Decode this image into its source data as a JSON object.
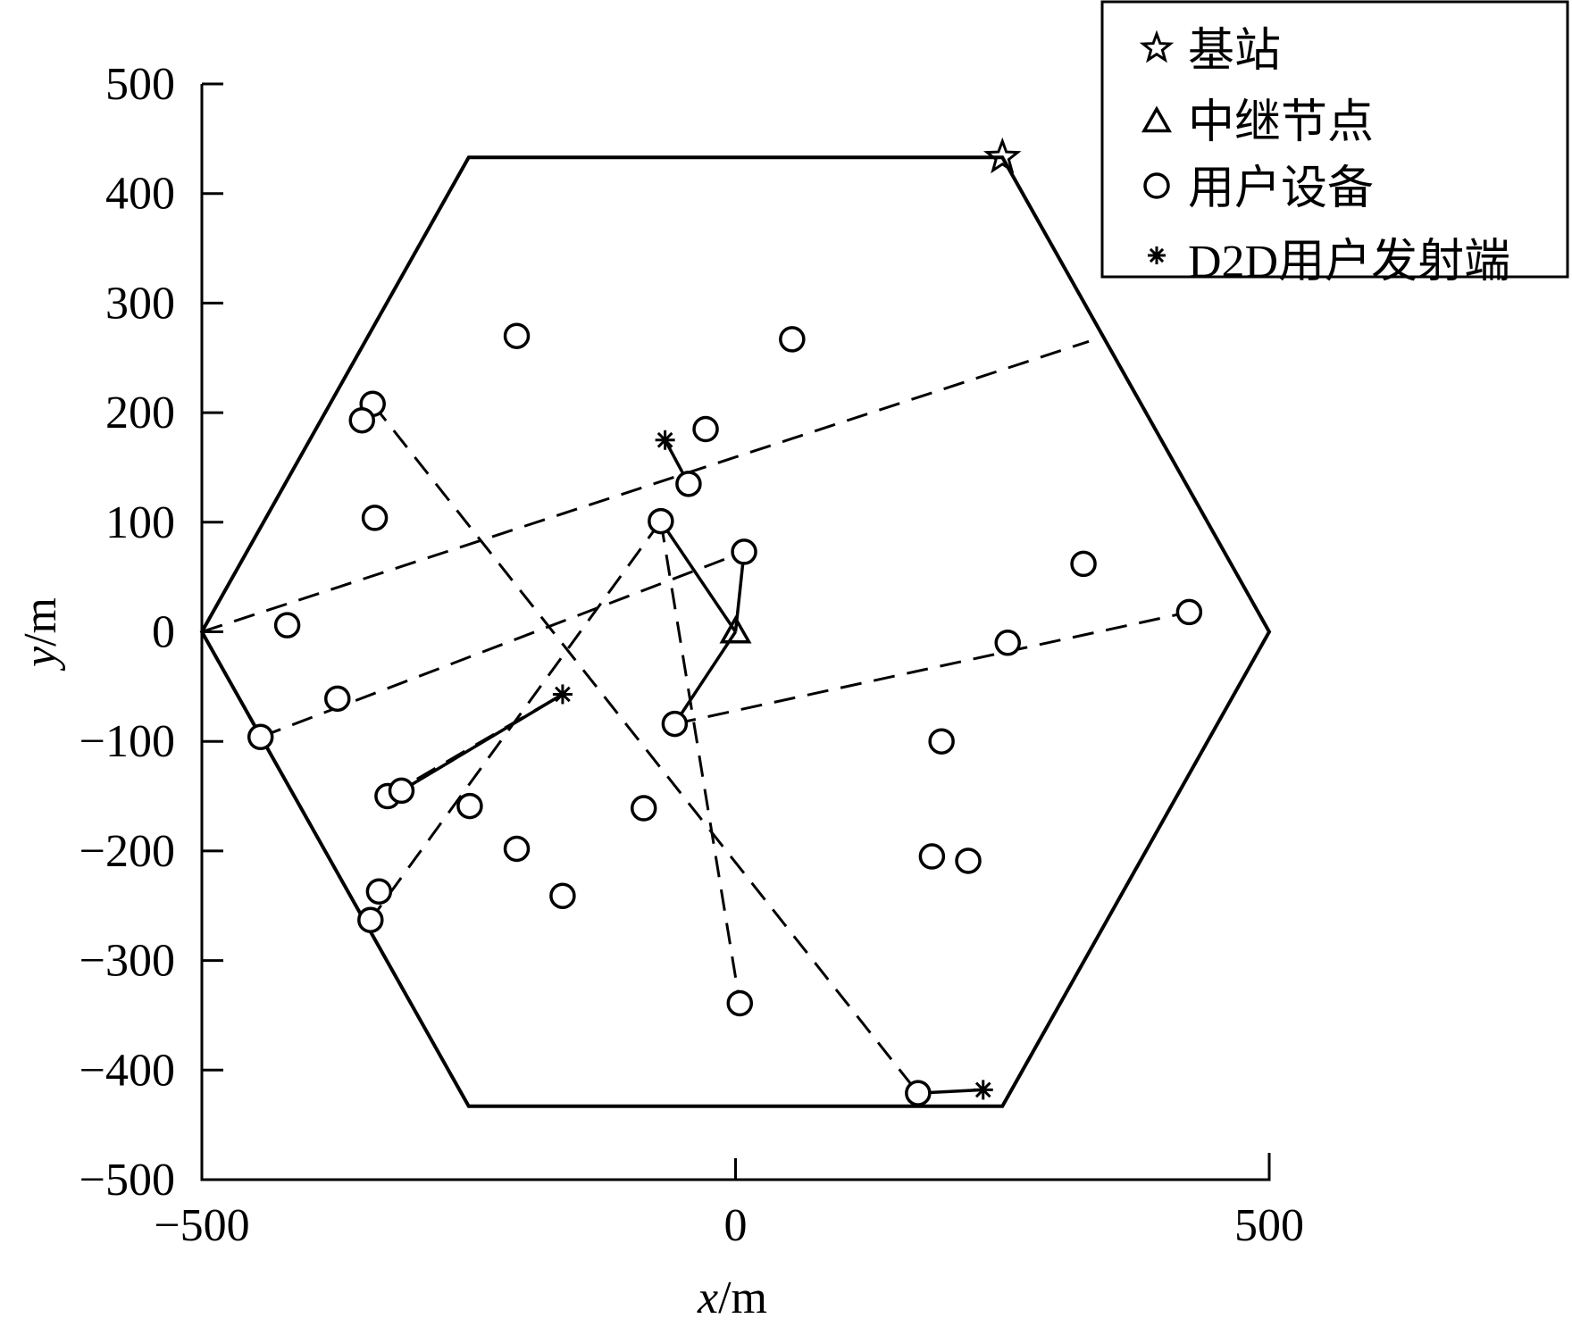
{
  "chart_data": {
    "type": "scatter",
    "title": "",
    "xlabel": {
      "var": "x",
      "unit": "/m"
    },
    "ylabel": {
      "var": "y",
      "unit": "/m"
    },
    "xlim": [
      -500,
      500
    ],
    "ylim": [
      -500,
      500
    ],
    "xticks": [
      -500,
      0,
      500
    ],
    "xtick_labels": [
      "−500",
      "0",
      "500"
    ],
    "yticks": [
      500,
      400,
      300,
      200,
      100,
      0,
      -100,
      -200,
      -300,
      -400,
      -500
    ],
    "ytick_labels": [
      "500",
      "400",
      "300",
      "200",
      "100",
      "0",
      "−100",
      "−200",
      "−300",
      "−400",
      "−500"
    ],
    "grid": false,
    "legend_position": "top-right",
    "legend": [
      {
        "marker": "star",
        "label": "基站"
      },
      {
        "marker": "triangle",
        "label": "中继节点"
      },
      {
        "marker": "circle",
        "label": "用户设备"
      },
      {
        "marker": "asterisk",
        "label": "D2D用户发射端"
      }
    ],
    "cell_boundary": [
      [
        -250,
        433
      ],
      [
        250,
        433
      ],
      [
        500,
        0
      ],
      [
        250,
        -433
      ],
      [
        -250,
        -433
      ],
      [
        -500,
        0
      ]
    ],
    "base_station": [
      [
        250,
        433
      ]
    ],
    "relay_nodes": [
      [
        0,
        0
      ]
    ],
    "user_equipment": [
      [
        -205,
        270
      ],
      [
        53,
        267
      ],
      [
        -340,
        208
      ],
      [
        -350,
        193
      ],
      [
        -28,
        185
      ],
      [
        -338,
        104
      ],
      [
        -44,
        135
      ],
      [
        -70,
        101
      ],
      [
        8,
        73
      ],
      [
        -420,
        6
      ],
      [
        -373,
        -61
      ],
      [
        -445,
        -96
      ],
      [
        -57,
        -84
      ],
      [
        255,
        -10
      ],
      [
        326,
        62
      ],
      [
        425,
        18
      ],
      [
        193,
        -100
      ],
      [
        -326,
        -150
      ],
      [
        -313,
        -145
      ],
      [
        -249,
        -159
      ],
      [
        -205,
        -198
      ],
      [
        -86,
        -161
      ],
      [
        -162,
        -241
      ],
      [
        -334,
        -237
      ],
      [
        -342,
        -263
      ],
      [
        184,
        -205
      ],
      [
        218,
        -209
      ],
      [
        4,
        -339
      ],
      [
        171,
        -421
      ]
    ],
    "d2d_transmitters": [
      [
        -66,
        175
      ],
      [
        -162,
        -57
      ],
      [
        232,
        -418
      ]
    ],
    "solid_links": [
      [
        [
          -66,
          175
        ],
        [
          -44,
          135
        ]
      ],
      [
        [
          -70,
          101
        ],
        [
          0,
          0
        ]
      ],
      [
        [
          8,
          73
        ],
        [
          0,
          0
        ]
      ],
      [
        [
          0,
          0
        ],
        [
          -57,
          -84
        ]
      ],
      [
        [
          -162,
          -57
        ],
        [
          -313,
          -145
        ]
      ],
      [
        [
          171,
          -421
        ],
        [
          232,
          -418
        ]
      ]
    ],
    "dashed_links": [
      [
        [
          -340,
          208
        ],
        [
          171,
          -421
        ]
      ],
      [
        [
          -70,
          101
        ],
        [
          -342,
          -263
        ]
      ],
      [
        [
          -70,
          101
        ],
        [
          4,
          -339
        ]
      ],
      [
        [
          -445,
          -96
        ],
        [
          8,
          73
        ]
      ],
      [
        [
          -500,
          0
        ],
        [
          331,
          265
        ]
      ],
      [
        [
          -57,
          -84
        ],
        [
          425,
          18
        ]
      ],
      [
        [
          -326,
          -150
        ],
        [
          -162,
          -57
        ]
      ]
    ]
  }
}
